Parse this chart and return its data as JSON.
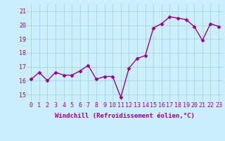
{
  "x": [
    0,
    1,
    2,
    3,
    4,
    5,
    6,
    7,
    8,
    9,
    10,
    11,
    12,
    13,
    14,
    15,
    16,
    17,
    18,
    19,
    20,
    21,
    22,
    23
  ],
  "y": [
    16.1,
    16.6,
    16.0,
    16.6,
    16.4,
    16.4,
    16.7,
    17.1,
    16.1,
    16.3,
    16.3,
    14.8,
    16.9,
    17.6,
    17.8,
    19.8,
    20.1,
    20.6,
    20.5,
    20.4,
    19.9,
    18.9,
    20.1,
    19.9
  ],
  "line_color": "#990099",
  "marker": "D",
  "marker_size": 2.5,
  "bg_color": "#cceeff",
  "grid_color": "#aadddd",
  "xlabel": "Windchill (Refroidissement éolien,°C)",
  "xlim": [
    -0.5,
    23.5
  ],
  "ylim": [
    14.5,
    21.5
  ],
  "xticks": [
    0,
    1,
    2,
    3,
    4,
    5,
    6,
    7,
    8,
    9,
    10,
    11,
    12,
    13,
    14,
    15,
    16,
    17,
    18,
    19,
    20,
    21,
    22,
    23
  ],
  "yticks": [
    15,
    16,
    17,
    18,
    19,
    20,
    21
  ],
  "xlabel_fontsize": 6.5,
  "tick_fontsize": 6,
  "line_width": 1.0
}
